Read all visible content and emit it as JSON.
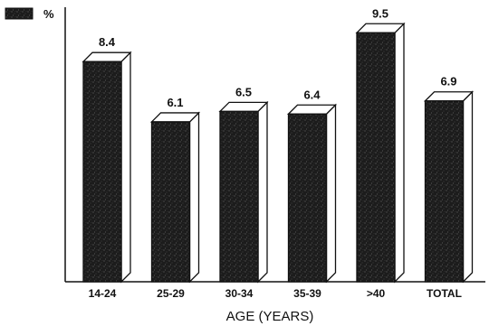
{
  "chart_data": {
    "type": "bar",
    "categories": [
      "14-24",
      "25-29",
      "30-34",
      "35-39",
      ">40",
      "TOTAL"
    ],
    "values": [
      8.4,
      6.1,
      6.5,
      6.4,
      9.5,
      6.9
    ],
    "value_labels": [
      "8.4",
      "6.1",
      "6.5",
      "6.4",
      "9.5",
      "6.9"
    ],
    "xlabel": "AGE (YEARS)",
    "ylabel": "",
    "legend": {
      "label": "%",
      "placement": "top-left"
    },
    "ylim": [
      0,
      10.75
    ],
    "grid": false,
    "style": "3d-bars",
    "colors": {
      "bar_front": "#1c1c1c",
      "bar_side": "#ffffff",
      "outline": "#111111"
    }
  }
}
